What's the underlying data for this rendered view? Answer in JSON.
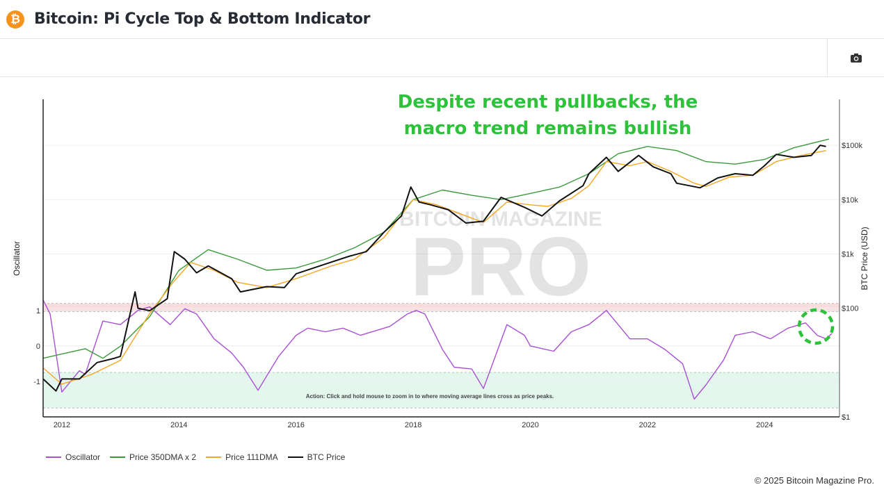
{
  "header": {
    "title": "Bitcoin: Pi Cycle Top & Bottom Indicator",
    "logo": "bitcoin-logo",
    "icon_logo": "₿"
  },
  "toolbar": {
    "camera": "camera-icon"
  },
  "annotation": {
    "line1": "Despite recent pullbacks, the",
    "line2": "macro trend remains bullish",
    "color": "#2ec23a"
  },
  "watermark": {
    "top": "BITCOIN MAGAZINE",
    "main": "PRO"
  },
  "footer": {
    "copyright": "© 2025 Bitcoin Magazine Pro."
  },
  "chart_data": {
    "type": "line",
    "title": "Bitcoin: Pi Cycle Top & Bottom Indicator",
    "action_text": "Action: Click and hold mouse to zoom in to where moving average lines cross as price peaks.",
    "xlim": [
      2011.68,
      2025.28
    ],
    "x_ticks": [
      "2012",
      "2014",
      "2016",
      "2018",
      "2020",
      "2022",
      "2024"
    ],
    "y_left": {
      "label": "Oscillator",
      "ticks": [
        "1",
        "0",
        "-1"
      ],
      "tick_values": [
        1,
        0,
        -1
      ],
      "range": [
        -2,
        6.95
      ]
    },
    "y_right": {
      "label": "BTC Price (USD)",
      "scale": "log",
      "ticks": [
        "$100k",
        "$10k",
        "$1k",
        "$100",
        "$1"
      ],
      "tick_values": [
        100000,
        10000,
        1000,
        100,
        1
      ],
      "range": [
        1,
        700000
      ]
    },
    "bands": [
      {
        "name": "top-zone",
        "from": 0.97,
        "to": 1.2,
        "color": "#fbdcdc"
      },
      {
        "name": "bottom-zone",
        "from": -1.75,
        "to": -0.75,
        "color": "#e4f7ee"
      }
    ],
    "legend": [
      "Oscillator",
      "Price 350DMA x 2",
      "Price 111DMA",
      "BTC Price"
    ],
    "series": [
      {
        "name": "Oscillator",
        "axis": "left",
        "color": "#a94fd6",
        "points": [
          [
            2011.68,
            1.3
          ],
          [
            2011.8,
            0.9
          ],
          [
            2012.0,
            -1.3
          ],
          [
            2012.3,
            -0.7
          ],
          [
            2012.4,
            -0.8
          ],
          [
            2012.7,
            0.7
          ],
          [
            2013.0,
            0.6
          ],
          [
            2013.3,
            1.0
          ],
          [
            2013.5,
            1.1
          ],
          [
            2013.85,
            0.6
          ],
          [
            2014.1,
            1.05
          ],
          [
            2014.3,
            0.9
          ],
          [
            2014.6,
            0.2
          ],
          [
            2014.9,
            -0.2
          ],
          [
            2015.1,
            -0.6
          ],
          [
            2015.35,
            -1.25
          ],
          [
            2015.7,
            -0.3
          ],
          [
            2016.0,
            0.3
          ],
          [
            2016.2,
            0.5
          ],
          [
            2016.5,
            0.4
          ],
          [
            2016.8,
            0.5
          ],
          [
            2017.1,
            0.3
          ],
          [
            2017.6,
            0.55
          ],
          [
            2017.9,
            0.9
          ],
          [
            2018.05,
            1.0
          ],
          [
            2018.2,
            0.9
          ],
          [
            2018.5,
            -0.1
          ],
          [
            2018.7,
            -0.6
          ],
          [
            2019.0,
            -0.65
          ],
          [
            2019.2,
            -1.2
          ],
          [
            2019.4,
            -0.3
          ],
          [
            2019.6,
            0.6
          ],
          [
            2019.9,
            0.3
          ],
          [
            2020.0,
            0.0
          ],
          [
            2020.4,
            -0.15
          ],
          [
            2020.7,
            0.4
          ],
          [
            2021.0,
            0.6
          ],
          [
            2021.3,
            1.0
          ],
          [
            2021.5,
            0.6
          ],
          [
            2021.7,
            0.2
          ],
          [
            2022.0,
            0.2
          ],
          [
            2022.3,
            -0.1
          ],
          [
            2022.6,
            -0.5
          ],
          [
            2022.8,
            -1.5
          ],
          [
            2023.0,
            -1.1
          ],
          [
            2023.3,
            -0.4
          ],
          [
            2023.5,
            0.3
          ],
          [
            2023.8,
            0.4
          ],
          [
            2024.1,
            0.2
          ],
          [
            2024.4,
            0.5
          ],
          [
            2024.7,
            0.65
          ],
          [
            2024.9,
            0.3
          ],
          [
            2025.05,
            0.2
          ],
          [
            2025.15,
            0.35
          ]
        ]
      },
      {
        "name": "Price 350DMA x 2",
        "axis": "right",
        "color": "#3a9a3a",
        "points": [
          [
            2011.68,
            12
          ],
          [
            2012.4,
            18
          ],
          [
            2012.7,
            12
          ],
          [
            2013.0,
            20
          ],
          [
            2013.5,
            70
          ],
          [
            2014.0,
            500
          ],
          [
            2014.5,
            1200
          ],
          [
            2015.0,
            800
          ],
          [
            2015.5,
            500
          ],
          [
            2016.0,
            550
          ],
          [
            2016.5,
            800
          ],
          [
            2017.0,
            1300
          ],
          [
            2017.5,
            2500
          ],
          [
            2018.0,
            10000
          ],
          [
            2018.5,
            15000
          ],
          [
            2019.0,
            12000
          ],
          [
            2019.5,
            10000
          ],
          [
            2020.0,
            13000
          ],
          [
            2020.5,
            17000
          ],
          [
            2021.0,
            30000
          ],
          [
            2021.5,
            70000
          ],
          [
            2022.0,
            95000
          ],
          [
            2022.5,
            80000
          ],
          [
            2023.0,
            50000
          ],
          [
            2023.5,
            45000
          ],
          [
            2024.0,
            55000
          ],
          [
            2024.5,
            90000
          ],
          [
            2025.1,
            130000
          ]
        ]
      },
      {
        "name": "Price 111DMA",
        "axis": "right",
        "color": "#f5a623",
        "points": [
          [
            2011.68,
            8
          ],
          [
            2012.0,
            4
          ],
          [
            2012.5,
            6
          ],
          [
            2013.0,
            11
          ],
          [
            2013.5,
            80
          ],
          [
            2013.9,
            300
          ],
          [
            2014.2,
            700
          ],
          [
            2014.6,
            500
          ],
          [
            2015.0,
            300
          ],
          [
            2015.5,
            240
          ],
          [
            2016.0,
            350
          ],
          [
            2016.6,
            600
          ],
          [
            2017.0,
            800
          ],
          [
            2017.5,
            2000
          ],
          [
            2018.0,
            10000
          ],
          [
            2018.4,
            8000
          ],
          [
            2018.9,
            5000
          ],
          [
            2019.2,
            3800
          ],
          [
            2019.6,
            9000
          ],
          [
            2020.0,
            8000
          ],
          [
            2020.3,
            7500
          ],
          [
            2020.7,
            10500
          ],
          [
            2021.0,
            18000
          ],
          [
            2021.3,
            50000
          ],
          [
            2021.7,
            42000
          ],
          [
            2022.0,
            50000
          ],
          [
            2022.4,
            33000
          ],
          [
            2022.8,
            20000
          ],
          [
            2023.0,
            17500
          ],
          [
            2023.4,
            26000
          ],
          [
            2023.8,
            28000
          ],
          [
            2024.2,
            50000
          ],
          [
            2024.6,
            64000
          ],
          [
            2025.05,
            80000
          ]
        ]
      },
      {
        "name": "BTC Price",
        "axis": "right",
        "color": "#111111",
        "points": [
          [
            2011.68,
            5
          ],
          [
            2011.9,
            3
          ],
          [
            2012.0,
            5
          ],
          [
            2012.3,
            5
          ],
          [
            2012.6,
            10
          ],
          [
            2012.9,
            12
          ],
          [
            2013.0,
            13
          ],
          [
            2013.25,
            200
          ],
          [
            2013.3,
            100
          ],
          [
            2013.5,
            90
          ],
          [
            2013.8,
            150
          ],
          [
            2013.92,
            1100
          ],
          [
            2014.1,
            800
          ],
          [
            2014.3,
            450
          ],
          [
            2014.5,
            600
          ],
          [
            2014.9,
            350
          ],
          [
            2015.05,
            200
          ],
          [
            2015.5,
            250
          ],
          [
            2015.8,
            240
          ],
          [
            2016.0,
            430
          ],
          [
            2016.5,
            650
          ],
          [
            2016.9,
            900
          ],
          [
            2017.2,
            1100
          ],
          [
            2017.5,
            2500
          ],
          [
            2017.8,
            5000
          ],
          [
            2017.96,
            17000
          ],
          [
            2018.1,
            9000
          ],
          [
            2018.3,
            8000
          ],
          [
            2018.6,
            6500
          ],
          [
            2018.9,
            3700
          ],
          [
            2019.2,
            4000
          ],
          [
            2019.5,
            11000
          ],
          [
            2019.9,
            7200
          ],
          [
            2020.2,
            5000
          ],
          [
            2020.5,
            9500
          ],
          [
            2020.9,
            18000
          ],
          [
            2021.0,
            30000
          ],
          [
            2021.3,
            60000
          ],
          [
            2021.5,
            33000
          ],
          [
            2021.85,
            65000
          ],
          [
            2022.1,
            40000
          ],
          [
            2022.4,
            30000
          ],
          [
            2022.5,
            20000
          ],
          [
            2022.9,
            16500
          ],
          [
            2023.2,
            25000
          ],
          [
            2023.5,
            30000
          ],
          [
            2023.8,
            28000
          ],
          [
            2024.0,
            42000
          ],
          [
            2024.2,
            68000
          ],
          [
            2024.5,
            60000
          ],
          [
            2024.8,
            65000
          ],
          [
            2024.95,
            100000
          ],
          [
            2025.05,
            95000
          ]
        ]
      }
    ],
    "highlight": {
      "shape": "dashed-circle",
      "color": "#2ec23a",
      "at_year": 2025.0
    }
  }
}
